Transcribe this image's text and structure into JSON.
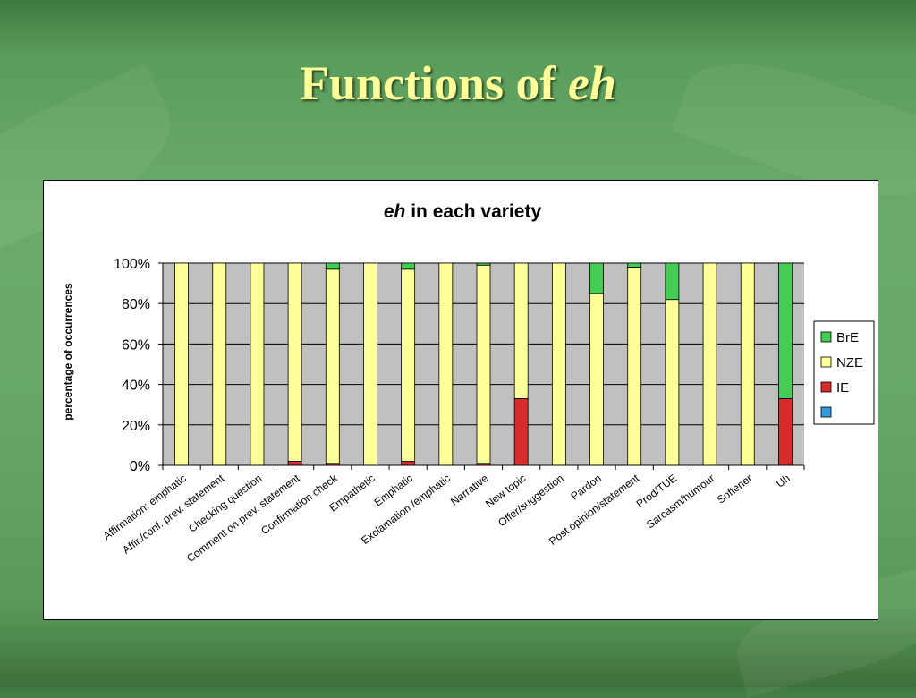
{
  "slide": {
    "title_prefix": "Functions of ",
    "title_emph": "eh"
  },
  "colors": {
    "BrE": "#44cc55",
    "NZE": "#ffff99",
    "IE": "#d82b2b",
    "unnamed": "#3399dd",
    "plot_bg": "#c0c0c0"
  },
  "chart_data": {
    "type": "bar",
    "stacked": "percent",
    "title_emph": "eh",
    "title_rest": " in each variety",
    "xlabel": "",
    "ylabel": "percentage of occurrences",
    "ylim": [
      0,
      100
    ],
    "yticks": [
      "0%",
      "20%",
      "40%",
      "60%",
      "80%",
      "100%"
    ],
    "grid": true,
    "legend_position": "right",
    "categories": [
      "Affirmation: emphatic",
      "Affir./conf. prev. statement",
      "Checking question",
      "Comment on prev. statement",
      "Confirmation check",
      "Empathetic",
      "Emphatic",
      "Exclamation /emphatic",
      "Narrative",
      "New topic",
      "Offer/suggestion",
      "Pardon",
      "Post opinion/statement",
      "Prod/TUE",
      "Sarcasm/humour",
      "Softener",
      "Uh"
    ],
    "series": [
      {
        "name": "",
        "values": [
          0,
          0,
          0,
          0,
          0,
          0,
          0,
          0,
          0,
          0,
          0,
          0,
          0,
          0,
          0,
          0,
          0
        ]
      },
      {
        "name": "IE",
        "values": [
          0,
          0,
          0,
          2,
          1,
          0,
          2,
          0,
          1,
          33,
          0,
          0,
          0,
          0,
          0,
          0,
          33
        ]
      },
      {
        "name": "NZE",
        "values": [
          100,
          100,
          100,
          98,
          96,
          100,
          95,
          100,
          98,
          67,
          100,
          85,
          98,
          82,
          100,
          100,
          0
        ]
      },
      {
        "name": "BrE",
        "values": [
          0,
          0,
          0,
          0,
          3,
          0,
          3,
          0,
          1,
          0,
          0,
          15,
          2,
          18,
          0,
          0,
          67
        ]
      }
    ],
    "legend": [
      "BrE",
      "NZE",
      "IE",
      ""
    ]
  }
}
